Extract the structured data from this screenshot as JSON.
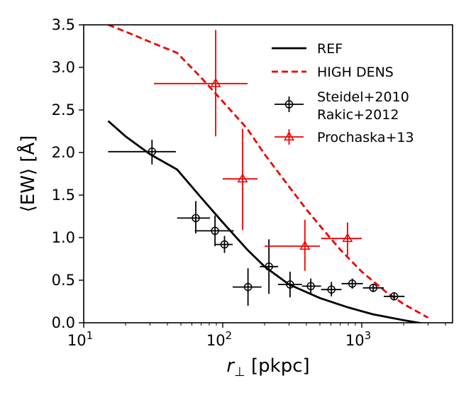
{
  "chart_data": {
    "type": "line",
    "title": "",
    "xlabel": "r⊥ [pkpc]",
    "ylabel": "⟨EW⟩ [Å]",
    "xscale": "log",
    "xlim": [
      10,
      4500
    ],
    "ylim": [
      0,
      3.5
    ],
    "grid": false,
    "legend_position": "top-right",
    "x_ticks": [
      {
        "value": 10,
        "base": "10",
        "exp": "1"
      },
      {
        "value": 100,
        "base": "10",
        "exp": "2"
      },
      {
        "value": 1000,
        "base": "10",
        "exp": "3"
      }
    ],
    "y_ticks": [
      "0.0",
      "0.5",
      "1.0",
      "1.5",
      "2.0",
      "2.5",
      "3.0",
      "3.5"
    ],
    "series": [
      {
        "name": "REF",
        "kind": "line",
        "color": "#000000",
        "dash": "solid",
        "x": [
          15,
          20,
          30,
          47,
          70,
          100,
          150,
          200,
          300,
          500,
          800,
          1200,
          2000,
          2800
        ],
        "y": [
          2.37,
          2.19,
          1.98,
          1.8,
          1.47,
          1.18,
          0.86,
          0.66,
          0.45,
          0.29,
          0.18,
          0.1,
          0.03,
          -0.01
        ]
      },
      {
        "name": "HIGH DENS",
        "kind": "line",
        "color": "#ee0000",
        "dash": "dashed",
        "x": [
          15,
          20,
          30,
          47,
          70,
          100,
          150,
          200,
          300,
          400,
          500,
          700,
          1000,
          1500,
          2000,
          3000
        ],
        "y": [
          3.5,
          3.42,
          3.3,
          3.17,
          2.88,
          2.6,
          2.28,
          1.98,
          1.6,
          1.33,
          1.14,
          0.86,
          0.6,
          0.36,
          0.22,
          0.06
        ]
      },
      {
        "name": "Steidel+2010\nRakic+2012",
        "legend_lines": [
          "Steidel+2010",
          "Rakic+2012"
        ],
        "kind": "errorbar",
        "marker": "circle-plus",
        "color": "#000000",
        "points": [
          {
            "x": 31,
            "y": 2.01,
            "xlo": 15,
            "xhi": 46,
            "ylo": 1.86,
            "yhi": 2.15
          },
          {
            "x": 64,
            "y": 1.23,
            "xlo": 47,
            "xhi": 81,
            "ylo": 1.05,
            "yhi": 1.43
          },
          {
            "x": 88,
            "y": 1.08,
            "xlo": 63,
            "xhi": 120,
            "ylo": 0.9,
            "yhi": 1.26
          },
          {
            "x": 103,
            "y": 0.92,
            "xlo": 88,
            "xhi": 118,
            "ylo": 0.82,
            "yhi": 1.02
          },
          {
            "x": 152,
            "y": 0.42,
            "xlo": 118,
            "xhi": 190,
            "ylo": 0.2,
            "yhi": 0.64
          },
          {
            "x": 215,
            "y": 0.66,
            "xlo": 185,
            "xhi": 250,
            "ylo": 0.34,
            "yhi": 0.98
          },
          {
            "x": 305,
            "y": 0.45,
            "xlo": 250,
            "xhi": 372,
            "ylo": 0.3,
            "yhi": 0.6
          },
          {
            "x": 430,
            "y": 0.43,
            "xlo": 372,
            "xhi": 510,
            "ylo": 0.34,
            "yhi": 0.52
          },
          {
            "x": 605,
            "y": 0.39,
            "xlo": 510,
            "xhi": 715,
            "ylo": 0.31,
            "yhi": 0.48
          },
          {
            "x": 855,
            "y": 0.46,
            "xlo": 715,
            "xhi": 1020,
            "ylo": 0.4,
            "yhi": 0.52
          },
          {
            "x": 1210,
            "y": 0.41,
            "xlo": 1020,
            "xhi": 1440,
            "ylo": 0.36,
            "yhi": 0.46
          },
          {
            "x": 1710,
            "y": 0.31,
            "xlo": 1440,
            "xhi": 2030,
            "ylo": 0.27,
            "yhi": 0.35
          }
        ]
      },
      {
        "name": "Prochaska+13",
        "kind": "errorbar",
        "marker": "triangle",
        "color": "#ee0000",
        "points": [
          {
            "x": 89,
            "y": 2.81,
            "xlo": 32,
            "xhi": 151,
            "ylo": 2.19,
            "yhi": 3.44
          },
          {
            "x": 139,
            "y": 1.69,
            "xlo": 100,
            "xhi": 178,
            "ylo": 1.09,
            "yhi": 2.28
          },
          {
            "x": 390,
            "y": 0.9,
            "xlo": 200,
            "xhi": 500,
            "ylo": 0.61,
            "yhi": 1.21
          },
          {
            "x": 790,
            "y": 0.99,
            "xlo": 510,
            "xhi": 1000,
            "ylo": 0.79,
            "yhi": 1.18
          }
        ]
      }
    ]
  }
}
